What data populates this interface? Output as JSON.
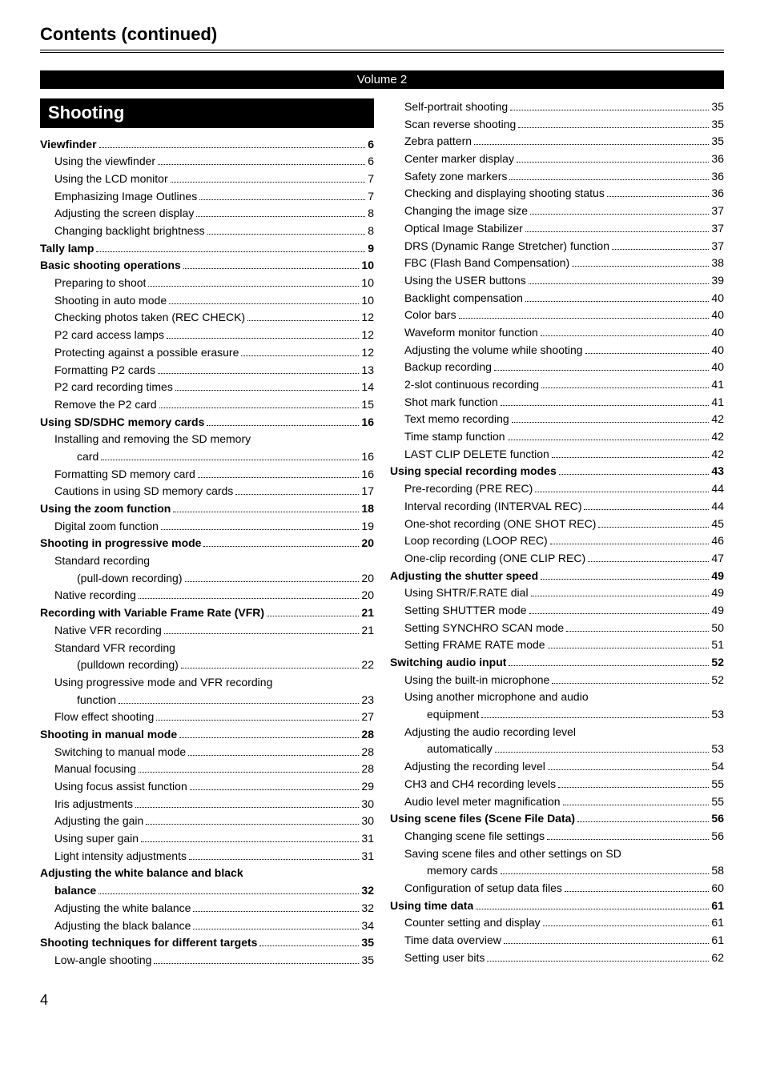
{
  "header": {
    "title": "Contents (continued)"
  },
  "volumeBar": "Volume 2",
  "sectionHeading": "Shooting",
  "footer": {
    "pageNumber": "4"
  },
  "colors": {
    "ink": "#000000",
    "paper": "#ffffff",
    "barBg": "#000000",
    "barFg": "#ffffff"
  },
  "leftColumn": [
    {
      "level": 0,
      "title": "Viewfinder",
      "page": "6"
    },
    {
      "level": 1,
      "title": "Using the viewfinder",
      "page": "6"
    },
    {
      "level": 1,
      "title": "Using the LCD monitor",
      "page": "7"
    },
    {
      "level": 1,
      "title": "Emphasizing Image Outlines",
      "page": "7"
    },
    {
      "level": 1,
      "title": "Adjusting the screen display",
      "page": "8"
    },
    {
      "level": 1,
      "title": "Changing backlight brightness",
      "page": "8"
    },
    {
      "level": 0,
      "title": "Tally lamp",
      "page": "9"
    },
    {
      "level": 0,
      "title": "Basic shooting operations",
      "page": "10"
    },
    {
      "level": 1,
      "title": "Preparing to shoot",
      "page": "10"
    },
    {
      "level": 1,
      "title": "Shooting in auto mode",
      "page": "10"
    },
    {
      "level": 1,
      "title": "Checking photos taken (REC CHECK)",
      "page": "12"
    },
    {
      "level": 1,
      "title": "P2 card access lamps",
      "page": "12"
    },
    {
      "level": 1,
      "title": "Protecting against a possible erasure",
      "page": "12"
    },
    {
      "level": 1,
      "title": "Formatting P2 cards",
      "page": "13"
    },
    {
      "level": 1,
      "title": "P2 card recording times",
      "page": "14"
    },
    {
      "level": 1,
      "title": "Remove the P2 card",
      "page": "15"
    },
    {
      "level": 0,
      "title": "Using SD/SDHC memory cards",
      "page": "16"
    },
    {
      "level": 1,
      "title": "Installing and removing the SD memory",
      "noPage": true
    },
    {
      "level": 2,
      "title": "card",
      "page": "16"
    },
    {
      "level": 1,
      "title": "Formatting SD memory card",
      "page": "16"
    },
    {
      "level": 1,
      "title": "Cautions in using SD memory cards",
      "page": "17"
    },
    {
      "level": 0,
      "title": "Using the zoom function",
      "page": "18"
    },
    {
      "level": 1,
      "title": "Digital zoom function",
      "page": "19"
    },
    {
      "level": 0,
      "title": "Shooting in progressive mode",
      "page": "20"
    },
    {
      "level": 1,
      "title": "Standard recording",
      "noPage": true
    },
    {
      "level": 2,
      "title": "(pull-down recording)",
      "page": "20"
    },
    {
      "level": 1,
      "title": "Native recording",
      "page": "20"
    },
    {
      "level": 0,
      "title": "Recording with Variable Frame Rate (VFR)",
      "page": "21"
    },
    {
      "level": 1,
      "title": "Native VFR recording",
      "page": "21"
    },
    {
      "level": 1,
      "title": "Standard VFR recording",
      "noPage": true
    },
    {
      "level": 2,
      "title": "(pulldown recording)",
      "page": "22"
    },
    {
      "level": 1,
      "title": "Using progressive mode and VFR recording",
      "noPage": true
    },
    {
      "level": 2,
      "title": "function",
      "page": "23"
    },
    {
      "level": 1,
      "title": "Flow effect shooting",
      "page": "27"
    },
    {
      "level": 0,
      "title": "Shooting in manual mode",
      "page": "28"
    },
    {
      "level": 1,
      "title": "Switching to manual mode",
      "page": "28"
    },
    {
      "level": 1,
      "title": "Manual focusing",
      "page": "28"
    },
    {
      "level": 1,
      "title": "Using focus assist function",
      "page": "29"
    },
    {
      "level": 1,
      "title": "Iris adjustments",
      "page": "30"
    },
    {
      "level": 1,
      "title": "Adjusting the gain",
      "page": "30"
    },
    {
      "level": 1,
      "title": "Using super gain",
      "page": "31"
    },
    {
      "level": 1,
      "title": "Light intensity adjustments",
      "page": "31"
    },
    {
      "level": 0,
      "title": "Adjusting the white balance and black",
      "noPage": true
    },
    {
      "level": 0,
      "continuation": true,
      "title": "balance",
      "page": "32"
    },
    {
      "level": 1,
      "title": "Adjusting the white balance",
      "page": "32"
    },
    {
      "level": 1,
      "title": "Adjusting the black balance",
      "page": "34"
    },
    {
      "level": 0,
      "title": "Shooting techniques for different targets",
      "page": "35"
    },
    {
      "level": 1,
      "title": "Low-angle shooting",
      "page": "35"
    }
  ],
  "rightColumn": [
    {
      "level": 1,
      "title": "Self-portrait shooting",
      "page": "35"
    },
    {
      "level": 1,
      "title": "Scan reverse shooting",
      "page": "35"
    },
    {
      "level": 1,
      "title": "Zebra pattern",
      "page": "35"
    },
    {
      "level": 1,
      "title": "Center marker display",
      "page": "36"
    },
    {
      "level": 1,
      "title": "Safety zone markers",
      "page": "36"
    },
    {
      "level": 1,
      "title": "Checking and displaying shooting status",
      "page": "36"
    },
    {
      "level": 1,
      "title": "Changing the image size",
      "page": "37"
    },
    {
      "level": 1,
      "title": "Optical Image Stabilizer",
      "page": "37"
    },
    {
      "level": 1,
      "title": "DRS (Dynamic Range Stretcher) function",
      "page": "37"
    },
    {
      "level": 1,
      "title": "FBC (Flash Band Compensation)",
      "page": "38"
    },
    {
      "level": 1,
      "title": "Using the USER buttons",
      "page": "39"
    },
    {
      "level": 1,
      "title": "Backlight compensation",
      "page": "40"
    },
    {
      "level": 1,
      "title": "Color bars",
      "page": "40"
    },
    {
      "level": 1,
      "title": "Waveform monitor function",
      "page": "40"
    },
    {
      "level": 1,
      "title": "Adjusting the volume while shooting",
      "page": "40"
    },
    {
      "level": 1,
      "title": "Backup recording",
      "page": "40"
    },
    {
      "level": 1,
      "title": "2-slot continuous recording",
      "page": "41"
    },
    {
      "level": 1,
      "title": "Shot mark function",
      "page": "41"
    },
    {
      "level": 1,
      "title": "Text memo recording",
      "page": "42"
    },
    {
      "level": 1,
      "title": "Time stamp function",
      "page": "42"
    },
    {
      "level": 1,
      "title": "LAST CLIP DELETE function",
      "page": "42"
    },
    {
      "level": 0,
      "title": "Using special recording modes",
      "page": "43"
    },
    {
      "level": 1,
      "title": "Pre-recording (PRE REC)",
      "page": "44"
    },
    {
      "level": 1,
      "title": "Interval recording (INTERVAL REC)",
      "page": "44"
    },
    {
      "level": 1,
      "title": "One-shot recording (ONE SHOT REC)",
      "page": "45"
    },
    {
      "level": 1,
      "title": "Loop recording (LOOP REC)",
      "page": "46"
    },
    {
      "level": 1,
      "title": "One-clip recording (ONE CLIP REC)",
      "page": "47"
    },
    {
      "level": 0,
      "title": "Adjusting the shutter speed",
      "page": "49"
    },
    {
      "level": 1,
      "title": "Using SHTR/F.RATE dial",
      "page": "49"
    },
    {
      "level": 1,
      "title": "Setting SHUTTER mode",
      "page": "49"
    },
    {
      "level": 1,
      "title": "Setting SYNCHRO SCAN mode",
      "page": "50"
    },
    {
      "level": 1,
      "title": "Setting FRAME RATE mode",
      "page": "51"
    },
    {
      "level": 0,
      "title": "Switching audio input",
      "page": "52"
    },
    {
      "level": 1,
      "title": "Using the built-in microphone",
      "page": "52"
    },
    {
      "level": 1,
      "title": "Using another microphone and audio",
      "noPage": true
    },
    {
      "level": 2,
      "title": "equipment",
      "page": "53"
    },
    {
      "level": 1,
      "title": "Adjusting the audio recording level",
      "noPage": true
    },
    {
      "level": 2,
      "title": "automatically",
      "page": "53"
    },
    {
      "level": 1,
      "title": "Adjusting the recording level",
      "page": "54"
    },
    {
      "level": 1,
      "title": "CH3 and CH4 recording levels",
      "page": "55"
    },
    {
      "level": 1,
      "title": "Audio level meter magnification",
      "page": "55"
    },
    {
      "level": 0,
      "title": "Using scene files (Scene File Data)",
      "page": "56"
    },
    {
      "level": 1,
      "title": "Changing scene file settings",
      "page": "56"
    },
    {
      "level": 1,
      "title": "Saving scene files and other settings on SD",
      "noPage": true
    },
    {
      "level": 2,
      "title": "memory cards",
      "page": "58"
    },
    {
      "level": 1,
      "title": "Configuration of setup data files",
      "page": "60"
    },
    {
      "level": 0,
      "title": "Using time data",
      "page": "61"
    },
    {
      "level": 1,
      "title": "Counter setting and display",
      "page": "61"
    },
    {
      "level": 1,
      "title": "Time data overview",
      "page": "61"
    },
    {
      "level": 1,
      "title": "Setting user bits",
      "page": "62"
    }
  ]
}
